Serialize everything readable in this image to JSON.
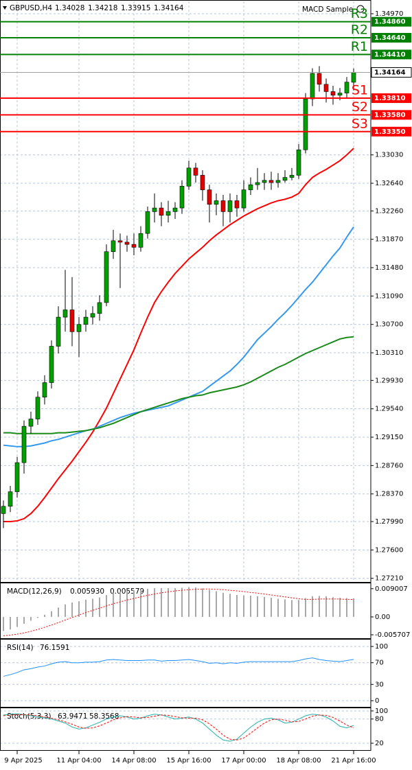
{
  "chart_data": [
    {
      "type": "candlestick",
      "title": "GBPUSD,H4",
      "expert": "MACD Sample",
      "categories": [
        null,
        null,
        "9 Apr 2025",
        null,
        null,
        null,
        null,
        null,
        null,
        null,
        null,
        "11 Apr 04:00",
        null,
        null,
        null,
        null,
        null,
        null,
        null,
        "14 Apr 08:00",
        null,
        null,
        null,
        null,
        null,
        null,
        null,
        "15 Apr 16:00",
        null,
        null,
        null,
        null,
        null,
        null,
        null,
        "17 Apr 00:00",
        null,
        null,
        null,
        null,
        null,
        null,
        null,
        "18 Apr 08:00",
        null,
        null,
        null,
        null,
        null,
        null,
        null,
        "21 Apr 16:00"
      ],
      "open": [
        1.281,
        1.282,
        1.284,
        1.288,
        1.293,
        1.294,
        1.297,
        1.299,
        1.304,
        1.308,
        1.309,
        1.306,
        1.307,
        1.308,
        1.3085,
        1.31,
        1.317,
        1.3185,
        1.3183,
        1.318,
        1.3176,
        1.3195,
        1.3225,
        1.323,
        1.322,
        1.3225,
        1.323,
        1.326,
        1.3285,
        1.3275,
        1.3255,
        1.3235,
        1.324,
        1.3225,
        1.324,
        1.323,
        1.3255,
        1.3262,
        1.3265,
        1.3268,
        1.3265,
        1.3268,
        1.3272,
        1.3275,
        1.331,
        1.338,
        1.3415,
        1.34,
        1.339,
        1.3385,
        1.3388,
        1.34028
      ],
      "high": [
        1.2828,
        1.2848,
        1.2888,
        1.2938,
        1.295,
        1.2978,
        1.3,
        1.3048,
        1.3095,
        1.3145,
        1.3135,
        1.308,
        1.309,
        1.3095,
        1.311,
        1.318,
        1.32,
        1.3195,
        1.3192,
        1.3195,
        1.3205,
        1.3232,
        1.325,
        1.3238,
        1.324,
        1.3238,
        1.3268,
        1.3295,
        1.3292,
        1.3282,
        1.3262,
        1.325,
        1.3248,
        1.325,
        1.3248,
        1.3268,
        1.3272,
        1.3285,
        1.3278,
        1.328,
        1.3278,
        1.3282,
        1.3285,
        1.3318,
        1.3388,
        1.3422,
        1.3425,
        1.3408,
        1.3398,
        1.3395,
        1.341,
        1.34218
      ],
      "low": [
        1.279,
        1.2812,
        1.2832,
        1.2865,
        1.292,
        1.2932,
        1.296,
        1.2982,
        1.303,
        1.306,
        1.304,
        1.3025,
        1.306,
        1.307,
        1.3075,
        1.3095,
        1.316,
        1.312,
        1.317,
        1.3165,
        1.317,
        1.3188,
        1.321,
        1.3205,
        1.321,
        1.3215,
        1.3222,
        1.3255,
        1.3265,
        1.324,
        1.321,
        1.322,
        1.3205,
        1.321,
        1.3218,
        1.3225,
        1.3248,
        1.3255,
        1.3255,
        1.3255,
        1.3258,
        1.3265,
        1.3268,
        1.327,
        1.3305,
        1.337,
        1.339,
        1.3375,
        1.3372,
        1.3378,
        1.338,
        1.33915
      ],
      "close": [
        1.282,
        1.284,
        1.288,
        1.293,
        1.294,
        1.297,
        1.299,
        1.304,
        1.308,
        1.309,
        1.306,
        1.307,
        1.308,
        1.3085,
        1.31,
        1.317,
        1.3185,
        1.3183,
        1.318,
        1.3176,
        1.3195,
        1.3225,
        1.323,
        1.322,
        1.3225,
        1.323,
        1.326,
        1.3285,
        1.3275,
        1.3255,
        1.3235,
        1.324,
        1.3225,
        1.324,
        1.323,
        1.3255,
        1.3262,
        1.3265,
        1.3268,
        1.3265,
        1.3268,
        1.3272,
        1.3275,
        1.331,
        1.338,
        1.3415,
        1.34,
        1.339,
        1.3385,
        1.3388,
        1.3403,
        1.34164
      ],
      "up_color": "#00a000",
      "down_color": "#e00000",
      "lines": [
        {
          "color": "#ff0000",
          "values": [
            1.2799,
            1.2799,
            1.28,
            1.2803,
            1.281,
            1.282,
            1.2832,
            1.2845,
            1.2858,
            1.287,
            1.2882,
            1.2895,
            1.2908,
            1.2922,
            1.2938,
            1.2955,
            1.2975,
            1.2995,
            1.3015,
            1.3035,
            1.3058,
            1.308,
            1.31,
            1.3115,
            1.3128,
            1.314,
            1.315,
            1.316,
            1.3168,
            1.3176,
            1.3185,
            1.3193,
            1.32,
            1.3207,
            1.3213,
            1.3219,
            1.3224,
            1.3229,
            1.3233,
            1.3237,
            1.324,
            1.3242,
            1.3245,
            1.325,
            1.3262,
            1.3272,
            1.3278,
            1.3283,
            1.3289,
            1.3295,
            1.3303,
            1.3312
          ]
        },
        {
          "color": "#3399ee",
          "values": [
            1.2904,
            1.2903,
            1.2902,
            1.2902,
            1.2903,
            1.2905,
            1.2907,
            1.291,
            1.2912,
            1.2915,
            1.2918,
            1.2921,
            1.2924,
            1.2926,
            1.293,
            1.2934,
            1.2938,
            1.2942,
            1.2945,
            1.2948,
            1.295,
            1.2952,
            1.2954,
            1.2956,
            1.2958,
            1.2962,
            1.2966,
            1.297,
            1.2974,
            1.2978,
            1.2985,
            1.2992,
            1.2999,
            1.3006,
            1.3015,
            1.3025,
            1.3037,
            1.3049,
            1.3058,
            1.3067,
            1.3077,
            1.3086,
            1.3096,
            1.3107,
            1.3118,
            1.3128,
            1.314,
            1.3152,
            1.3164,
            1.3175,
            1.319,
            1.3204
          ]
        },
        {
          "color": "#1a8a1a",
          "values": [
            1.2921,
            1.2921,
            1.292,
            1.292,
            1.292,
            1.292,
            1.292,
            1.292,
            1.2921,
            1.2921,
            1.2922,
            1.2923,
            1.2924,
            1.2926,
            1.2928,
            1.2931,
            1.2934,
            1.2938,
            1.2942,
            1.2946,
            1.295,
            1.2953,
            1.2956,
            1.2959,
            1.2962,
            1.2965,
            1.2968,
            1.297,
            1.2972,
            1.2973,
            1.2976,
            1.2978,
            1.298,
            1.2982,
            1.2984,
            1.2987,
            1.2991,
            1.2996,
            1.3001,
            1.3006,
            1.3011,
            1.3015,
            1.302,
            1.3025,
            1.303,
            1.3034,
            1.3038,
            1.3042,
            1.3046,
            1.305,
            1.3052,
            1.3053
          ]
        }
      ],
      "levels": [
        {
          "name": "R3",
          "value": 1.3486,
          "label": "1.34860",
          "color": "#008000"
        },
        {
          "name": "R2",
          "value": 1.3464,
          "label": "1.34640",
          "color": "#008000"
        },
        {
          "name": "R1",
          "value": 1.3441,
          "label": "1.34410",
          "color": "#008000"
        },
        {
          "name": "S1",
          "value": 1.3381,
          "label": "1.33810",
          "color": "#ff0000"
        },
        {
          "name": "S2",
          "value": 1.3358,
          "label": "1.33580",
          "color": "#ff0000"
        },
        {
          "name": "S3",
          "value": 1.3335,
          "label": "1.33350",
          "color": "#ff0000"
        }
      ],
      "ylim": [
        1.2716,
        1.3514
      ],
      "yticks": [
        {
          "value": 1.3497,
          "label": "1.34970"
        },
        {
          "value": 1.3303,
          "label": "1.33030"
        },
        {
          "value": 1.3264,
          "label": "1.32640"
        },
        {
          "value": 1.3226,
          "label": "1.32260"
        },
        {
          "value": 1.3187,
          "label": "1.31870"
        },
        {
          "value": 1.3148,
          "label": "1.31480"
        },
        {
          "value": 1.3109,
          "label": "1.31090"
        },
        {
          "value": 1.307,
          "label": "1.30700"
        },
        {
          "value": 1.3031,
          "label": "1.30310"
        },
        {
          "value": 1.2993,
          "label": "1.29930"
        },
        {
          "value": 1.2954,
          "label": "1.29540"
        },
        {
          "value": 1.2915,
          "label": "1.29150"
        },
        {
          "value": 1.2876,
          "label": "1.28760"
        },
        {
          "value": 1.2837,
          "label": "1.28370"
        },
        {
          "value": 1.2799,
          "label": "1.27990"
        },
        {
          "value": 1.276,
          "label": "1.27600"
        },
        {
          "value": 1.2721,
          "label": "1.27210"
        }
      ],
      "grid": true
    },
    {
      "type": "macd",
      "title": "MACD(12,26,9)",
      "header_values": [
        {
          "value": 0.00593,
          "label": "0.005930"
        },
        {
          "value": 0.005579,
          "label": "0.005579"
        }
      ],
      "histogram": {
        "color": "#a8a8a8",
        "values": [
          -0.0045,
          -0.004,
          -0.0032,
          -0.0022,
          -0.0012,
          -0.0003,
          0.0007,
          0.0018,
          0.003,
          0.004,
          0.0046,
          0.005,
          0.0055,
          0.0058,
          0.0062,
          0.007,
          0.0077,
          0.0081,
          0.0084,
          0.0085,
          0.0087,
          0.009,
          0.0092,
          0.0092,
          0.0092,
          0.0092,
          0.0093,
          0.0095,
          0.0094,
          0.0091,
          0.0086,
          0.0082,
          0.0077,
          0.0074,
          0.007,
          0.0069,
          0.0068,
          0.0066,
          0.0064,
          0.0061,
          0.0058,
          0.0056,
          0.0054,
          0.0054,
          0.006,
          0.0066,
          0.0067,
          0.0066,
          0.0063,
          0.0061,
          0.006,
          0.00593
        ]
      },
      "signal": {
        "color": "#ff0000",
        "values": [
          -0.006,
          -0.0058,
          -0.0055,
          -0.0051,
          -0.0046,
          -0.004,
          -0.0033,
          -0.0026,
          -0.0018,
          -0.001,
          -0.0002,
          0.0006,
          0.0014,
          0.0021,
          0.0028,
          0.0035,
          0.0042,
          0.0048,
          0.0054,
          0.0059,
          0.0064,
          0.0069,
          0.0073,
          0.0077,
          0.008,
          0.0083,
          0.0085,
          0.0087,
          0.0088,
          0.0089,
          0.0089,
          0.0088,
          0.0087,
          0.0085,
          0.0083,
          0.0081,
          0.0078,
          0.0076,
          0.0073,
          0.007,
          0.0067,
          0.0064,
          0.0061,
          0.0058,
          0.0056,
          0.0056,
          0.0057,
          0.0057,
          0.0057,
          0.0057,
          0.0056,
          0.005579
        ]
      },
      "ylim": [
        -0.0068,
        0.0105
      ],
      "yticks": [
        0.009007,
        {
          "value": 0,
          "label": "0.00"
        },
        -0.005707
      ],
      "grid": false
    },
    {
      "type": "rsi",
      "title": "RSI(14)",
      "series": [
        {
          "color": "#1e90ff",
          "values": [
            45,
            48,
            52,
            57,
            59,
            62,
            64,
            68,
            71,
            72,
            70,
            70,
            71,
            71,
            72,
            75,
            76,
            75,
            74,
            74,
            74,
            75,
            75,
            73,
            74,
            74,
            75,
            76,
            74,
            72,
            69,
            70,
            68,
            70,
            69,
            71,
            72,
            72,
            72,
            72,
            72,
            72,
            72,
            74,
            77,
            79,
            76,
            74,
            73,
            72,
            74,
            76.1591
          ]
        }
      ],
      "ylim": [
        -11.4,
        111.4
      ],
      "yticks": [
        100,
        70,
        30,
        0
      ],
      "grid": true
    },
    {
      "type": "stoch",
      "title": "Stoch(5,3,3)",
      "series": [
        {
          "color": "#20b2aa",
          "values": [
            90,
            92,
            93,
            91,
            88,
            85,
            83,
            80,
            75,
            70,
            60,
            55,
            58,
            65,
            72,
            80,
            85,
            88,
            85,
            80,
            82,
            88,
            92,
            90,
            85,
            80,
            82,
            85,
            80,
            70,
            55,
            40,
            28,
            25,
            30,
            45,
            60,
            72,
            80,
            82,
            78,
            70,
            72,
            80,
            88,
            92,
            90,
            85,
            75,
            62,
            58,
            63.9471
          ]
        },
        {
          "color": "#ff0000",
          "dashed": true,
          "values": [
            88,
            90,
            91,
            91,
            90,
            88,
            85,
            82,
            78,
            73,
            67,
            60,
            57,
            58,
            63,
            70,
            78,
            83,
            86,
            85,
            83,
            84,
            87,
            90,
            89,
            86,
            83,
            82,
            82,
            78,
            68,
            55,
            40,
            30,
            28,
            33,
            45,
            58,
            70,
            78,
            80,
            77,
            73,
            74,
            80,
            87,
            90,
            89,
            84,
            75,
            65,
            58.3568
          ]
        }
      ],
      "ylim": [
        3,
        105
      ],
      "yticks": [
        100,
        80,
        20
      ],
      "grid": true
    }
  ]
}
